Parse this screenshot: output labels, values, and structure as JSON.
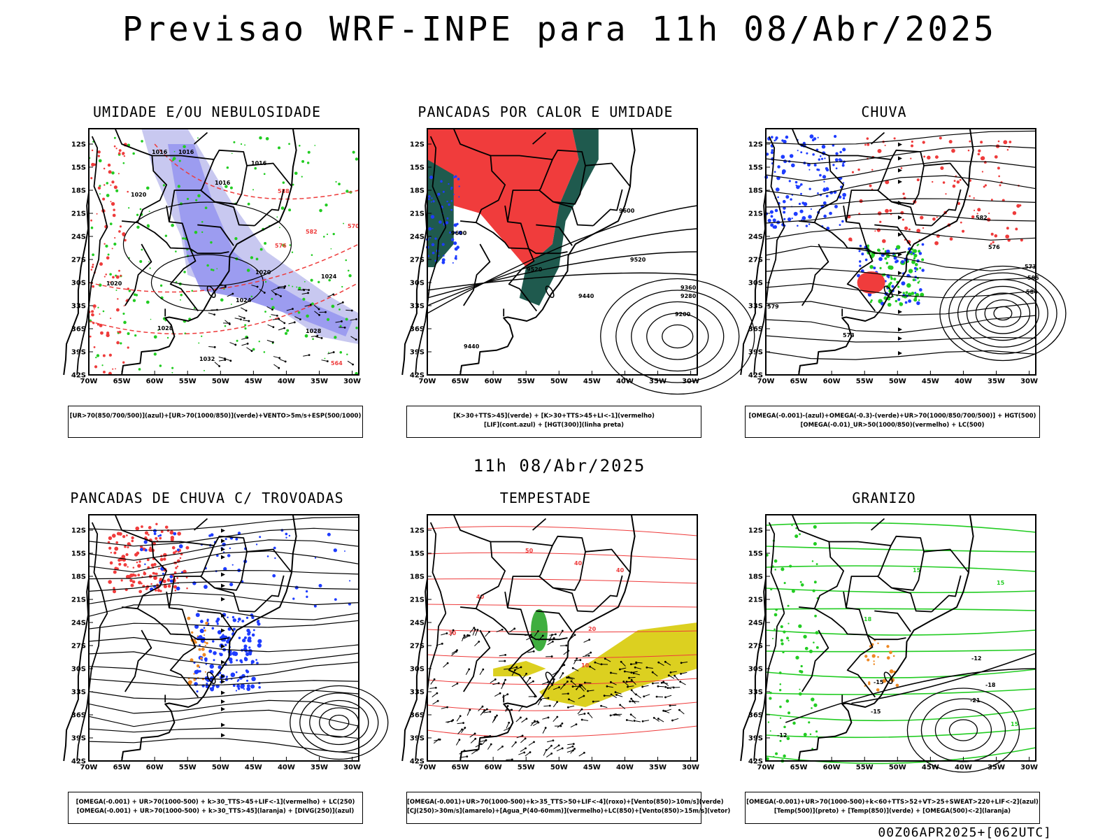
{
  "header": {
    "title": "Previsao WRF-INPE  para 11h 08/Abr/2025",
    "middle_title": "11h 08/Abr/2025",
    "footer": "00Z06APR2025+[062UTC]"
  },
  "axes": {
    "lat_labels": [
      "12S",
      "15S",
      "18S",
      "21S",
      "24S",
      "27S",
      "30S",
      "33S",
      "36S",
      "39S",
      "42S"
    ],
    "lon_labels": [
      "70W",
      "65W",
      "60W",
      "55W",
      "50W",
      "45W",
      "40W",
      "35W",
      "30W"
    ]
  },
  "colors": {
    "purple_light": "#c8c8f0",
    "purple_mid": "#9c9cf0",
    "green_contour": "#22cc22",
    "red_contour": "#ee3b3b",
    "blue": "#1e3cff",
    "dark_green": "#1f5a4e",
    "yellow": "#dcd020",
    "orange": "#ee8822"
  },
  "panels": [
    {
      "title": "UMIDADE E/OU NEBULOSIDADE",
      "legend": [
        "[UR>70(850/700/500)](azul)+[UR>70(1000/850)](verde)+VENTO>5m/s+ESP(500/1000)"
      ],
      "contour_labels": [
        "1016",
        "1016",
        "1016",
        "1016",
        "1020",
        "1020",
        "1020",
        "1024",
        "1024",
        "1028",
        "1028",
        "1032",
        "564",
        "570",
        "576",
        "582",
        "588"
      ]
    },
    {
      "title": "PANCADAS POR CALOR E UMIDADE",
      "legend": [
        "[K>30+TTS>45](verde) + [K>30+TTS>45+LI<-1](vermelho)",
        "[LIF](cont.azul) + [HGT(300)](linha preta)"
      ],
      "contour_labels": [
        "9600",
        "9600",
        "9520",
        "9520",
        "9440",
        "9440",
        "9360",
        "9280",
        "9200"
      ]
    },
    {
      "title": "CHUVA",
      "legend": [
        "[OMEGA(-0.001)-(azul)+OMEGA(-0.3)-(verde)+UR>70(1000/850/700/500)] + HGT(500)",
        "[OMEGA(-0.01)_UR>50(1000/850)(vermelho) + LC(500)"
      ],
      "contour_labels": [
        "582",
        "576",
        "573",
        "579",
        "585",
        "573",
        "584"
      ]
    },
    {
      "title": "PANCADAS DE CHUVA C/ TROVOADAS",
      "legend": [
        "[OMEGA(-0.001) + UR>70(1000-500) + k>30_TTS>45+LIF<-1](vermelho) + LC(250)",
        "[OMEGA(-0.001) + UR>70(1000-500) + k>30_TTS>45](laranja) + [DIVG(250)](azul)"
      ],
      "contour_labels": []
    },
    {
      "title": "TEMPESTADE",
      "legend": [
        "[OMEGA(-0.001)+UR>70(1000-500)+k>35_TTS>50+LIF<-4](roxo)+[Vento(850)>10m/s](verde)",
        "[CJ(250)>30m/s](amarelo)+[Agua_P(40-60mm)](vermelho)+LC(850)+[Vento(850)>15m/s](vetor)"
      ],
      "contour_labels": [
        "50",
        "40",
        "40",
        "40",
        "30",
        "20",
        "10"
      ]
    },
    {
      "title": "GRANIZO",
      "legend": [
        "[OMEGA(-0.001)+UR>70(1000-500)+k<60+TTS>52+VT>25+SWEAT>220+LIF<-2](azul)",
        "[Temp(500)](preto) + [Temp(850)](verde) + [OMEGA(500)<-2](laranja)"
      ],
      "contour_labels": [
        "-12",
        "-12",
        "-15",
        "-15",
        "-18",
        "-21",
        "15",
        "18",
        "15",
        "15"
      ]
    }
  ]
}
